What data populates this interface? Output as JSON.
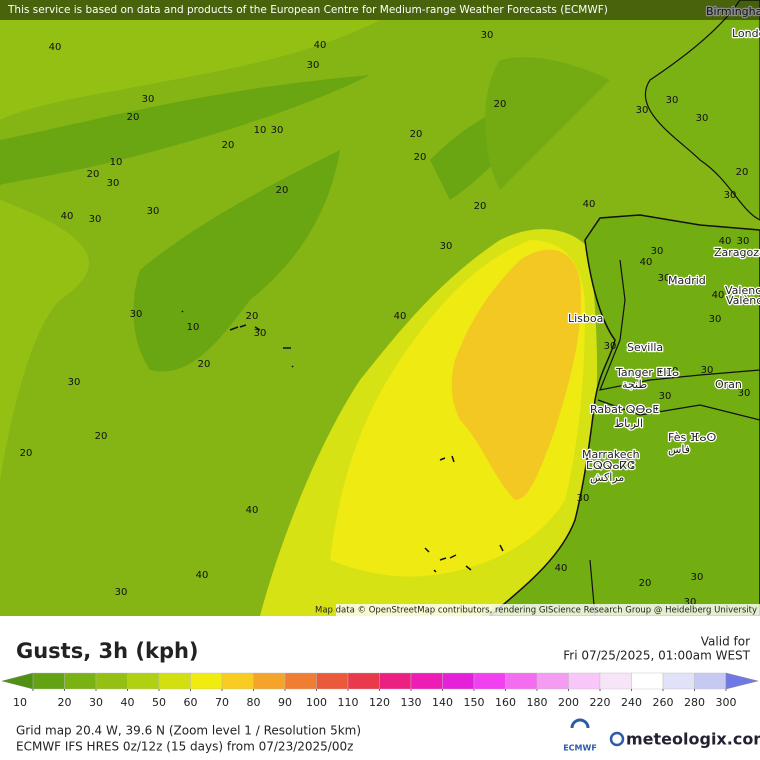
{
  "banner": "This service is based on data and products of the European Centre for Medium-range Weather Forecasts (ECMWF)",
  "map": {
    "cities": [
      {
        "name": "Birmingham"
      },
      {
        "name": "London"
      },
      {
        "name": "Zaragoza"
      },
      {
        "name": "Madrid"
      },
      {
        "name": "Valencia"
      },
      {
        "name": "València"
      },
      {
        "name": "Lisboa"
      },
      {
        "name": "Sevilla"
      },
      {
        "name": "Tanger ⵟⵏⵊⴰ"
      },
      {
        "name": "طنجة"
      },
      {
        "name": "Oran"
      },
      {
        "name": "Rabat ⵕⴱⴰⵟ"
      },
      {
        "name": "الرباط"
      },
      {
        "name": "Fès ⴼⴰⵙ"
      },
      {
        "name": "فاس"
      },
      {
        "name": "Marrakech"
      },
      {
        "name": "ⵎⵕⵕⴰⴽⵛ"
      },
      {
        "name": "مراكش"
      }
    ],
    "contour_labels": [
      40,
      40,
      30,
      30,
      30,
      20,
      10,
      30,
      20,
      10,
      20,
      30,
      40,
      30,
      30,
      20,
      20,
      20,
      20,
      20,
      30,
      40,
      40,
      20,
      30,
      10,
      30,
      20,
      30,
      20,
      20,
      40,
      40,
      30,
      40,
      30,
      20,
      30,
      30,
      30,
      30,
      30,
      20,
      30,
      30,
      40,
      40,
      30,
      40,
      30,
      30,
      30,
      30,
      30,
      30,
      30
    ],
    "attribution": "Map data © OpenStreetMap contributors, rendering GIScience Research Group @ Heidelberg University"
  },
  "legend": {
    "title": "Gusts, 3h (kph)",
    "valid_label": "Valid for",
    "valid_time": "Fri 07/25/2025, 01:00am WEST",
    "ticks": [
      10,
      20,
      30,
      40,
      50,
      60,
      70,
      80,
      90,
      100,
      110,
      120,
      130,
      140,
      150,
      160,
      180,
      200,
      220,
      240,
      260,
      280,
      300
    ],
    "colors": [
      "#4f9110",
      "#63a212",
      "#7ab214",
      "#93c012",
      "#b0d012",
      "#d2e012",
      "#f0ec10",
      "#f8cc20",
      "#f4a42a",
      "#f07e32",
      "#ea5a3a",
      "#e83a4a",
      "#ec2080",
      "#ee1cb4",
      "#e420d8",
      "#f040f0",
      "#f46cf0",
      "#f49cf2",
      "#f8c6f8",
      "#f8e4f8",
      "#ffffff",
      "#e0e2f8",
      "#c6caf2",
      "#a8aef0",
      "#8890ee",
      "#7078e8"
    ]
  },
  "footer": {
    "grid": "Grid map 20.4 W, 39.6 N (Zoom level 1 / Resolution 5km)",
    "model": "ECMWF IFS HRES 0z/12z (15 days) from  07/23/2025/00z",
    "ecmwf": "ECMWF",
    "brand": "meteologix.com"
  }
}
